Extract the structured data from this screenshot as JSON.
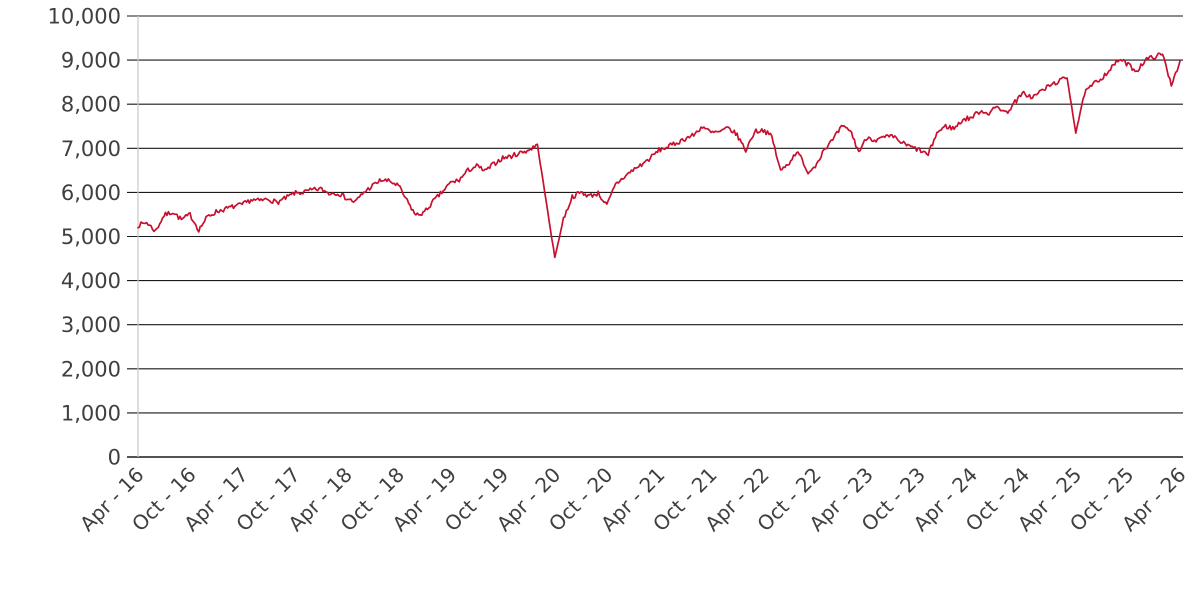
{
  "chart_data": {
    "type": "line",
    "title": "",
    "legend": "none",
    "grid": "horizontal",
    "ylim": [
      0,
      10000
    ],
    "y_ticks": [
      "0",
      "1,000",
      "2,000",
      "3,000",
      "4,000",
      "5,000",
      "6,000",
      "7,000",
      "8,000",
      "9,000",
      "10,000"
    ],
    "x_ticks": [
      "Apr - 16",
      "Oct - 16",
      "Apr - 17",
      "Oct - 17",
      "Apr - 18",
      "Oct - 18",
      "Apr - 19",
      "Oct - 19",
      "Apr - 20",
      "Oct - 20",
      "Apr - 21",
      "Oct - 21",
      "Apr - 22",
      "Oct - 22",
      "Apr - 23",
      "Oct - 23",
      "Apr - 24",
      "Oct - 24",
      "Apr - 25",
      "Oct - 25",
      "Apr - 26"
    ],
    "series": [
      {
        "name": "index-price-line",
        "color": "#c8102e",
        "interval": "monthly",
        "start": "Apr - 16",
        "end": "Apr - 26",
        "values": [
          5250,
          5320,
          5120,
          5480,
          5560,
          5380,
          5500,
          5150,
          5450,
          5560,
          5620,
          5680,
          5720,
          5830,
          5810,
          5850,
          5770,
          5870,
          5980,
          6000,
          6050,
          6080,
          5980,
          5990,
          5870,
          5780,
          6000,
          6150,
          6280,
          6250,
          6150,
          5800,
          5480,
          5550,
          5800,
          6000,
          6220,
          6280,
          6500,
          6600,
          6480,
          6650,
          6780,
          6820,
          6900,
          6960,
          7080,
          5800,
          4520,
          5400,
          5900,
          6000,
          5920,
          5980,
          5700,
          6180,
          6350,
          6510,
          6630,
          6780,
          6960,
          7030,
          7120,
          7220,
          7300,
          7500,
          7350,
          7370,
          7460,
          7300,
          6950,
          7380,
          7420,
          7260,
          6480,
          6680,
          6960,
          6450,
          6600,
          6980,
          7180,
          7480,
          7420,
          6920,
          7260,
          7180,
          7250,
          7260,
          7120,
          7030,
          6960,
          6850,
          7350,
          7500,
          7450,
          7650,
          7700,
          7850,
          7800,
          7950,
          7800,
          8050,
          8250,
          8150,
          8300,
          8420,
          8520,
          8600,
          7350,
          8250,
          8450,
          8600,
          8800,
          9020,
          8900,
          8750,
          9000,
          9080,
          9130,
          8450,
          8980
        ]
      }
    ],
    "colors": {
      "background": "#ffffff",
      "gridline": "#1a1a1a",
      "axis_line": "#c9c9c9",
      "tick_label": "#3f3f3f",
      "line": "#c8102e"
    }
  }
}
